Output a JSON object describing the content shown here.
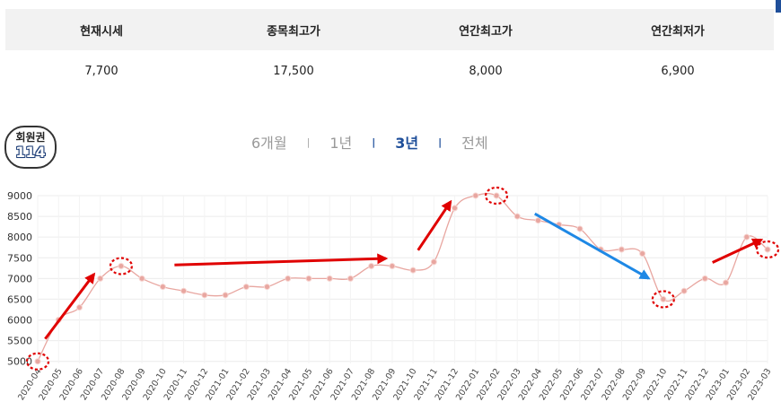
{
  "stats": {
    "headers": [
      "현재시세",
      "종목최고가",
      "연간최고가",
      "연간최저가"
    ],
    "values": [
      "7,700",
      "17,500",
      "8,000",
      "6,900"
    ]
  },
  "badge": {
    "line1": "회원권",
    "line2": "114"
  },
  "tabs": {
    "items": [
      "6개월",
      "1년",
      "3년",
      "전체"
    ],
    "separator": "|",
    "active_index": 2
  },
  "colors": {
    "line": "#e8a6a0",
    "point": "#e8a6a0",
    "annotation_red": "#e00000",
    "annotation_blue": "#1e88e5",
    "annual_high": "#c0392b",
    "annual_low": "#2e5e9e"
  },
  "chart_data": {
    "type": "line",
    "x": [
      "2020-04",
      "2020-05",
      "2020-06",
      "2020-07",
      "2020-08",
      "2020-09",
      "2020-10",
      "2020-11",
      "2020-12",
      "2021-01",
      "2021-02",
      "2021-03",
      "2021-04",
      "2021-05",
      "2021-06",
      "2021-07",
      "2021-08",
      "2021-09",
      "2021-10",
      "2021-11",
      "2021-12",
      "2022-01",
      "2022-02",
      "2022-03",
      "2022-04",
      "2022-05",
      "2022-06",
      "2022-07",
      "2022-08",
      "2022-09",
      "2022-10",
      "2022-11",
      "2022-12",
      "2023-01",
      "2023-02",
      "2023-03"
    ],
    "values": [
      5000,
      6000,
      6300,
      7000,
      7300,
      7000,
      6800,
      6700,
      6600,
      6600,
      6800,
      6800,
      7000,
      7000,
      7000,
      7000,
      7300,
      7300,
      7200,
      7400,
      8700,
      9000,
      9000,
      8500,
      8400,
      8300,
      8200,
      7700,
      7700,
      7600,
      6500,
      6700,
      7000,
      6900,
      8000,
      7700
    ],
    "yticks": [
      5000,
      5500,
      6000,
      6500,
      7000,
      7500,
      8000,
      8500,
      9000
    ],
    "ylim": [
      4950,
      9000
    ],
    "grid": true,
    "annotations": {
      "circled_points": [
        "2020-04",
        "2020-08",
        "2022-02",
        "2022-10",
        "2023-03"
      ],
      "red_arrows": [
        [
          "2020-04",
          "2020-07"
        ],
        [
          "2020-09",
          "2021-10"
        ],
        [
          "2021-10",
          "2021-12"
        ],
        [
          "2022-12",
          "2023-03"
        ]
      ],
      "blue_arrows": [
        [
          "2022-03",
          "2022-10"
        ]
      ]
    }
  }
}
